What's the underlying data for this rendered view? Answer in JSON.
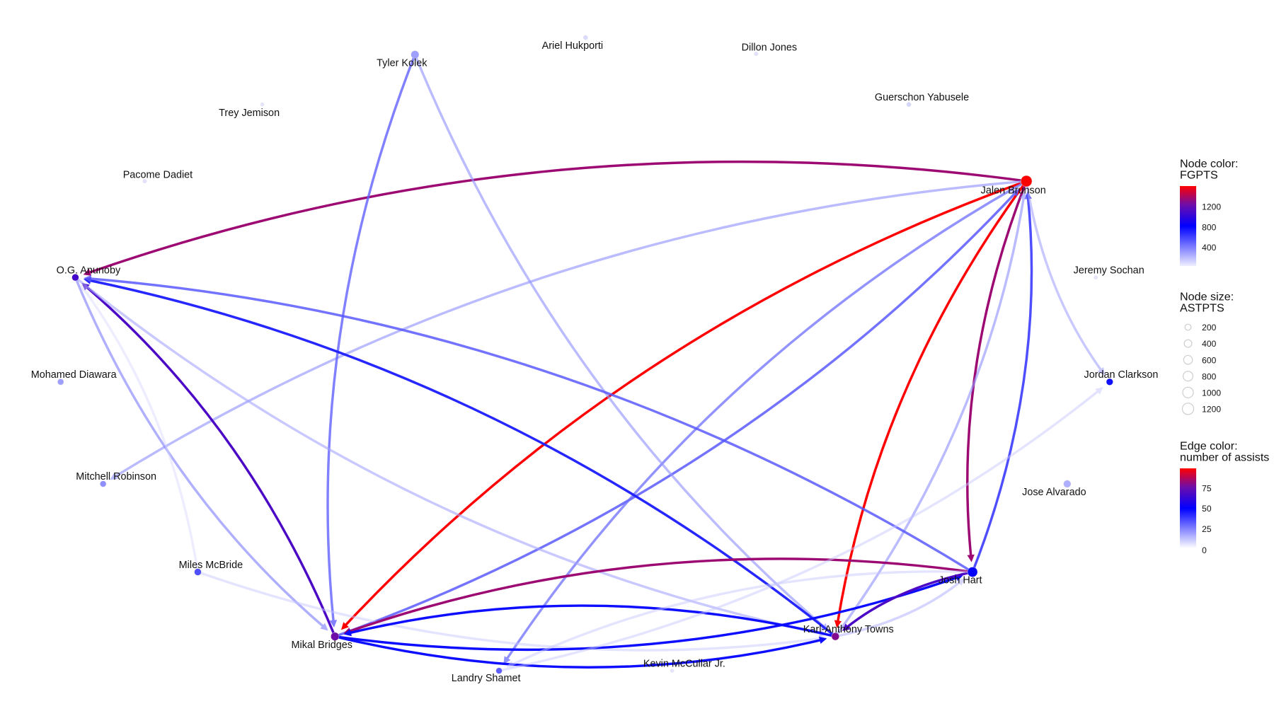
{
  "legend": {
    "node_color_title": [
      "Node color:",
      "FGPTS"
    ],
    "node_color_ticks": [
      400,
      800,
      1200
    ],
    "node_size_title": [
      "Node size:",
      "ASTPTS"
    ],
    "node_size_ticks": [
      200,
      400,
      600,
      800,
      1000,
      1200
    ],
    "edge_color_title": [
      "Edge color:",
      "number of assists"
    ],
    "edge_color_ticks": [
      0,
      25,
      50,
      75
    ]
  },
  "colors": {
    "low": "#eeeeff",
    "mid": "#0000ff",
    "high_mid": "#6a0dad",
    "high": "#ff0000"
  },
  "nodes": [
    {
      "id": "Tyler Kolek",
      "fgpts": 250,
      "astpts": 450
    },
    {
      "id": "Ariel Hukporti",
      "fgpts": 60,
      "astpts": 60
    },
    {
      "id": "Dillon Jones",
      "fgpts": 40,
      "astpts": 30
    },
    {
      "id": "Trey Jemison",
      "fgpts": 30,
      "astpts": 20
    },
    {
      "id": "Guerschon Yabusele",
      "fgpts": 80,
      "astpts": 60
    },
    {
      "id": "Pacome Dadiet",
      "fgpts": 40,
      "astpts": 30
    },
    {
      "id": "Jalen Brunson",
      "fgpts": 1500,
      "astpts": 1150
    },
    {
      "id": "O.G. Anunoby",
      "fgpts": 1000,
      "astpts": 300
    },
    {
      "id": "Jeremy Sochan",
      "fgpts": 30,
      "astpts": 20
    },
    {
      "id": "Mohamed Diawara",
      "fgpts": 250,
      "astpts": 200
    },
    {
      "id": "Jordan Clarkson",
      "fgpts": 700,
      "astpts": 280
    },
    {
      "id": "Mitchell Robinson",
      "fgpts": 300,
      "astpts": 200
    },
    {
      "id": "Jose Alvarado",
      "fgpts": 200,
      "astpts": 350
    },
    {
      "id": "Miles McBride",
      "fgpts": 500,
      "astpts": 300
    },
    {
      "id": "Josh Hart",
      "fgpts": 750,
      "astpts": 850
    },
    {
      "id": "Mikal Bridges",
      "fgpts": 1150,
      "astpts": 500
    },
    {
      "id": "Karl-Anthony Towns",
      "fgpts": 1200,
      "astpts": 400
    },
    {
      "id": "Landry Shamet",
      "fgpts": 450,
      "astpts": 200
    },
    {
      "id": "Kevin McCullar Jr.",
      "fgpts": 30,
      "astpts": 20
    }
  ],
  "edges": [
    {
      "from": "Jalen Brunson",
      "to": "O.G. Anunoby",
      "assists": 80
    },
    {
      "from": "Jalen Brunson",
      "to": "Mikal Bridges",
      "assists": 95
    },
    {
      "from": "Jalen Brunson",
      "to": "Karl-Anthony Towns",
      "assists": 95
    },
    {
      "from": "Jalen Brunson",
      "to": "Josh Hart",
      "assists": 80
    },
    {
      "from": "Josh Hart",
      "to": "Jalen Brunson",
      "assists": 35
    },
    {
      "from": "Mikal Bridges",
      "to": "Jalen Brunson",
      "assists": 30
    },
    {
      "from": "Karl-Anthony Towns",
      "to": "Jalen Brunson",
      "assists": 18
    },
    {
      "from": "Jalen Brunson",
      "to": "Jordan Clarkson",
      "assists": 15
    },
    {
      "from": "Jalen Brunson",
      "to": "Mitchell Robinson",
      "assists": 18
    },
    {
      "from": "Jalen Brunson",
      "to": "Landry Shamet",
      "assists": 25
    },
    {
      "from": "Tyler Kolek",
      "to": "Mikal Bridges",
      "assists": 28
    },
    {
      "from": "Tyler Kolek",
      "to": "Karl-Anthony Towns",
      "assists": 18
    },
    {
      "from": "Mikal Bridges",
      "to": "O.G. Anunoby",
      "assists": 65
    },
    {
      "from": "Karl-Anthony Towns",
      "to": "O.G. Anunoby",
      "assists": 40
    },
    {
      "from": "Josh Hart",
      "to": "O.G. Anunoby",
      "assists": 30
    },
    {
      "from": "O.G. Anunoby",
      "to": "Karl-Anthony Towns",
      "assists": 15
    },
    {
      "from": "O.G. Anunoby",
      "to": "Mikal Bridges",
      "assists": 20
    },
    {
      "from": "Miles McBride",
      "to": "O.G. Anunoby",
      "assists": 5
    },
    {
      "from": "Miles McBride",
      "to": "Karl-Anthony Towns",
      "assists": 8
    },
    {
      "from": "Josh Hart",
      "to": "Mikal Bridges",
      "assists": 80
    },
    {
      "from": "Mikal Bridges",
      "to": "Josh Hart",
      "assists": 45
    },
    {
      "from": "Karl-Anthony Towns",
      "to": "Mikal Bridges",
      "assists": 45
    },
    {
      "from": "Mikal Bridges",
      "to": "Karl-Anthony Towns",
      "assists": 45
    },
    {
      "from": "Josh Hart",
      "to": "Karl-Anthony Towns",
      "assists": 65
    },
    {
      "from": "Karl-Anthony Towns",
      "to": "Josh Hart",
      "assists": 12
    },
    {
      "from": "Landry Shamet",
      "to": "Jordan Clarkson",
      "assists": 8
    },
    {
      "from": "Josh Hart",
      "to": "Landry Shamet",
      "assists": 8
    }
  ]
}
